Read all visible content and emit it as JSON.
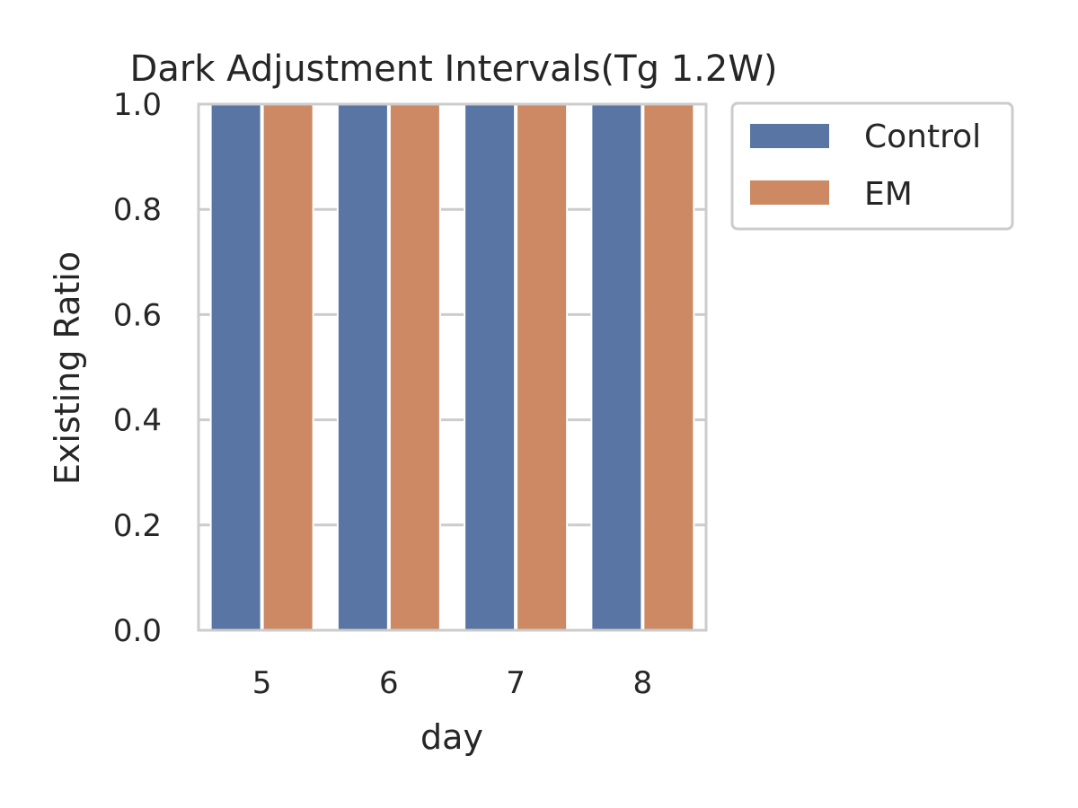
{
  "colors": {
    "control": "#5975a4",
    "em": "#cc8963",
    "grid": "#cccccc",
    "frame": "#cccccc",
    "text": "#262626"
  },
  "chart_data": {
    "type": "bar",
    "title": "Dark Adjustment Intervals(Tg 1.2W)",
    "xlabel": "day",
    "ylabel": "Existing Ratio",
    "categories": [
      "5",
      "6",
      "7",
      "8"
    ],
    "series": [
      {
        "name": "Control",
        "values": [
          1.0,
          1.0,
          1.0,
          1.0
        ]
      },
      {
        "name": "EM",
        "values": [
          1.0,
          1.0,
          1.0,
          1.0
        ]
      }
    ],
    "ylim": [
      0,
      1.0
    ],
    "yticks": [
      "0.0",
      "0.2",
      "0.4",
      "0.6",
      "0.8",
      "1.0"
    ],
    "grid": true,
    "legend": "outside top-right"
  }
}
